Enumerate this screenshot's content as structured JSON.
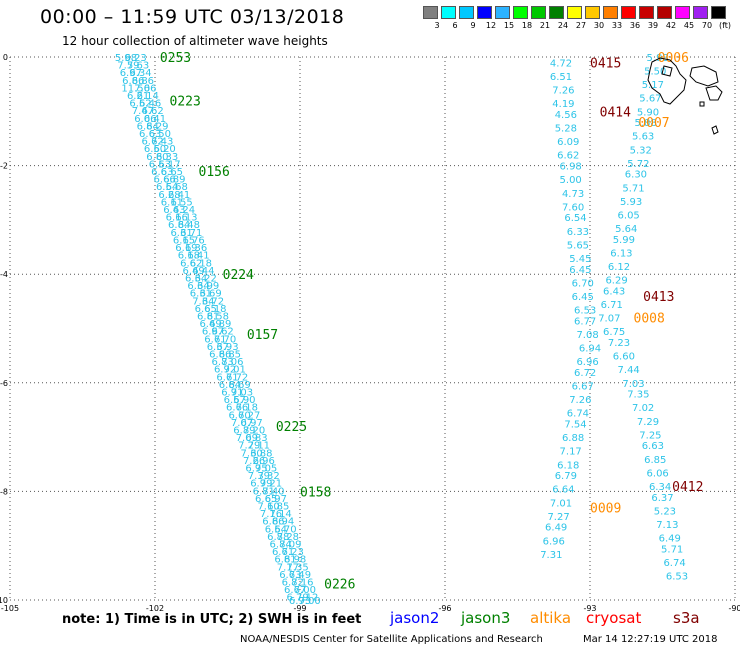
{
  "header": {
    "title": "00:00 – 11:59 UTC 03/13/2018",
    "subtitle": "12 hour collection of altimeter wave heights"
  },
  "color_scale": {
    "colors": [
      "#808080",
      "#00ffff",
      "#00c8ff",
      "#0000ff",
      "#2cb3ff",
      "#00ff00",
      "#00c800",
      "#008000",
      "#ffff00",
      "#ffc800",
      "#ff7f00",
      "#ff0000",
      "#c80000",
      "#b40000",
      "#ff00ff",
      "#a020f0",
      "#000000"
    ],
    "labels": [
      "3",
      "6",
      "9",
      "12",
      "15",
      "18",
      "21",
      "24",
      "27",
      "30",
      "33",
      "36",
      "39",
      "42",
      "45",
      "70",
      "(ft)"
    ]
  },
  "footer": {
    "note": "note: 1) Time is in UTC; 2) SWH is in feet",
    "satellites": [
      {
        "name": "jason2",
        "color": "#0000ff"
      },
      {
        "name": "jason3",
        "color": "#008000"
      },
      {
        "name": "altika",
        "color": "#ff8c00"
      },
      {
        "name": "cryosat",
        "color": "#ff0000"
      },
      {
        "name": "s3a",
        "color": "#800000"
      }
    ],
    "credit": "NOAA/NESDIS Center for Satellite Applications and Research",
    "timestamp": "Mar 14 12:27:19 UTC 2018"
  },
  "chart_data": {
    "type": "scatter",
    "xlim": [
      -105,
      -90
    ],
    "ylim": [
      -10,
      0
    ],
    "xticks": [
      -105,
      -102,
      -99,
      -96,
      -93,
      -90
    ],
    "yticks": [
      0,
      -2,
      -4,
      -6,
      -8,
      -10
    ],
    "grid": true,
    "data_color": "#2ec4e8",
    "track_labels": [
      {
        "label": "0253",
        "x": -101.9,
        "y": 0.0,
        "color": "#008000"
      },
      {
        "label": "0223",
        "x": -101.7,
        "y": -0.8,
        "color": "#008000"
      },
      {
        "label": "0156",
        "x": -101.1,
        "y": -2.1,
        "color": "#008000"
      },
      {
        "label": "0224",
        "x": -100.6,
        "y": -4.0,
        "color": "#008000"
      },
      {
        "label": "0157",
        "x": -100.1,
        "y": -5.1,
        "color": "#008000"
      },
      {
        "label": "0225",
        "x": -99.5,
        "y": -6.8,
        "color": "#008000"
      },
      {
        "label": "0158",
        "x": -99.0,
        "y": -8.0,
        "color": "#008000"
      },
      {
        "label": "0226",
        "x": -98.5,
        "y": -9.7,
        "color": "#008000"
      },
      {
        "label": "0415",
        "x": -93.0,
        "y": -0.1,
        "color": "#800000"
      },
      {
        "label": "0414",
        "x": -92.8,
        "y": -1.0,
        "color": "#800000"
      },
      {
        "label": "0413",
        "x": -91.9,
        "y": -4.4,
        "color": "#800000"
      },
      {
        "label": "0412",
        "x": -91.3,
        "y": -7.9,
        "color": "#800000"
      },
      {
        "label": "0006",
        "x": -91.6,
        "y": 0.0,
        "color": "#ff8c00"
      },
      {
        "label": "0007",
        "x": -92.0,
        "y": -1.2,
        "color": "#ff8c00"
      },
      {
        "label": "0008",
        "x": -92.1,
        "y": -4.8,
        "color": "#ff8c00"
      },
      {
        "label": "0009",
        "x": -93.0,
        "y": -8.3,
        "color": "#ff8c00"
      }
    ],
    "series": [
      {
        "x": [
          -102.6,
          -102.55,
          -102.5,
          -102.45,
          -102.4,
          -102.35,
          -102.3,
          -102.25,
          -102.2,
          -102.15,
          -102.1,
          -102.05,
          -102.0,
          -101.95,
          -101.9,
          -101.85,
          -101.8,
          -101.75,
          -101.7,
          -101.65,
          -101.6,
          -101.55,
          -101.5,
          -101.45,
          -101.4,
          -101.35,
          -101.3,
          -101.25,
          -101.2,
          -101.15,
          -101.1,
          -101.05,
          -101.0,
          -100.95,
          -100.9,
          -100.85,
          -100.8,
          -100.75,
          -100.7,
          -100.65,
          -100.6,
          -100.55,
          -100.5,
          -100.45,
          -100.4,
          -100.35,
          -100.3,
          -100.25,
          -100.2,
          -100.15,
          -100.1,
          -100.05,
          -100.0,
          -99.95,
          -99.9,
          -99.85,
          -99.8,
          -99.75,
          -99.7,
          -99.65,
          -99.6,
          -99.55,
          -99.5,
          -99.45,
          -99.4,
          -99.35,
          -99.3,
          -99.25,
          -99.2,
          -99.15,
          -99.1,
          -99.05,
          -99.0
        ],
        "y": [
          0.0,
          -0.14,
          -0.28,
          -0.42,
          -0.56,
          -0.7,
          -0.84,
          -0.98,
          -1.12,
          -1.26,
          -1.4,
          -1.54,
          -1.68,
          -1.82,
          -1.96,
          -2.1,
          -2.24,
          -2.38,
          -2.52,
          -2.66,
          -2.8,
          -2.94,
          -3.08,
          -3.22,
          -3.36,
          -3.5,
          -3.64,
          -3.78,
          -3.92,
          -4.06,
          -4.2,
          -4.34,
          -4.48,
          -4.62,
          -4.76,
          -4.9,
          -5.04,
          -5.18,
          -5.32,
          -5.46,
          -5.6,
          -5.74,
          -5.88,
          -6.02,
          -6.16,
          -6.3,
          -6.44,
          -6.58,
          -6.72,
          -6.86,
          -7.0,
          -7.14,
          -7.28,
          -7.42,
          -7.56,
          -7.7,
          -7.84,
          -7.98,
          -8.12,
          -8.26,
          -8.4,
          -8.54,
          -8.68,
          -8.82,
          -8.96,
          -9.1,
          -9.24,
          -9.38,
          -9.52,
          -9.66,
          -9.8,
          -9.94,
          -10.0
        ],
        "values": [
          5.98,
          7.59,
          6.97,
          6.86,
          11.56,
          6.21,
          6.52,
          7.47,
          6.06,
          6.84,
          6.63,
          6.72,
          6.5,
          6.8,
          6.53,
          6.63,
          6.66,
          6.54,
          6.28,
          6.11,
          6.43,
          6.16,
          6.84,
          6.31,
          6.15,
          6.19,
          6.18,
          6.62,
          6.49,
          6.34,
          6.34,
          6.31,
          7.34,
          6.65,
          6.81,
          6.49,
          6.97,
          6.71,
          6.37,
          6.86,
          6.83,
          6.92,
          6.71,
          6.84,
          6.91,
          6.57,
          6.66,
          6.6,
          7.07,
          6.89,
          7.09,
          7.29,
          7.3,
          7.26,
          6.95,
          7.39,
          6.99,
          6.81,
          6.65,
          7.1,
          7.16,
          6.86,
          6.54,
          6.88,
          6.84,
          6.61,
          6.81,
          7.17,
          6.63,
          6.82,
          6.67,
          6.79,
          6.93
        ]
      },
      {
        "x": [
          -102.4,
          -102.35,
          -102.3,
          -102.25,
          -102.2,
          -102.15,
          -102.1,
          -102.05,
          -102.0,
          -101.95,
          -101.9,
          -101.85,
          -101.8,
          -101.75,
          -101.7,
          -101.65,
          -101.6,
          -101.55,
          -101.5,
          -101.45,
          -101.4,
          -101.35,
          -101.3,
          -101.25,
          -101.2,
          -101.15,
          -101.1,
          -101.05,
          -101.0,
          -100.95,
          -100.9,
          -100.85,
          -100.8,
          -100.75,
          -100.7,
          -100.65,
          -100.6,
          -100.55,
          -100.5,
          -100.45,
          -100.4,
          -100.35,
          -100.3,
          -100.25,
          -100.2,
          -100.15,
          -100.1,
          -100.05,
          -100.0,
          -99.95,
          -99.9,
          -99.85,
          -99.8,
          -99.75,
          -99.7,
          -99.65,
          -99.6,
          -99.55,
          -99.5,
          -99.45,
          -99.4,
          -99.35,
          -99.3,
          -99.25,
          -99.2,
          -99.15,
          -99.1,
          -99.05,
          -99.0,
          -98.95,
          -98.9,
          -98.85,
          -98.8
        ],
        "y": [
          0.0,
          -0.14,
          -0.28,
          -0.42,
          -0.56,
          -0.7,
          -0.84,
          -0.98,
          -1.12,
          -1.26,
          -1.4,
          -1.54,
          -1.68,
          -1.82,
          -1.96,
          -2.1,
          -2.24,
          -2.38,
          -2.52,
          -2.66,
          -2.8,
          -2.94,
          -3.08,
          -3.22,
          -3.36,
          -3.5,
          -3.64,
          -3.78,
          -3.92,
          -4.06,
          -4.2,
          -4.34,
          -4.48,
          -4.62,
          -4.76,
          -4.9,
          -5.04,
          -5.18,
          -5.32,
          -5.46,
          -5.6,
          -5.74,
          -5.88,
          -6.02,
          -6.16,
          -6.3,
          -6.44,
          -6.58,
          -6.72,
          -6.86,
          -7.0,
          -7.14,
          -7.28,
          -7.42,
          -7.56,
          -7.7,
          -7.84,
          -7.98,
          -8.12,
          -8.26,
          -8.4,
          -8.54,
          -8.68,
          -8.82,
          -8.96,
          -9.1,
          -9.24,
          -9.38,
          -9.52,
          -9.66,
          -9.8,
          -9.94,
          -10.0
        ],
        "values": [
          6.23,
          7.63,
          6.34,
          6.86,
          7.06,
          6.14,
          6.46,
          6.62,
          6.41,
          6.29,
          6.5,
          6.43,
          6.2,
          6.33,
          6.17,
          6.65,
          6.89,
          6.68,
          6.41,
          6.55,
          6.24,
          6.13,
          6.48,
          6.71,
          6.76,
          6.36,
          6.41,
          6.18,
          6.44,
          6.22,
          6.99,
          6.69,
          6.72,
          6.18,
          6.58,
          6.89,
          6.62,
          6.7,
          6.93,
          6.85,
          7.06,
          7.01,
          6.72,
          6.69,
          7.03,
          6.9,
          7.18,
          7.27,
          6.97,
          7.2,
          6.83,
          7.11,
          6.88,
          6.96,
          7.05,
          7.32,
          7.21,
          7.4,
          6.97,
          6.85,
          7.14,
          6.94,
          6.7,
          7.28,
          7.09,
          7.23,
          6.98,
          7.35,
          7.49,
          7.16,
          7.0,
          7.12,
          7.0
        ]
      },
      {
        "x": [
          -93.6,
          -93.6,
          -93.55,
          -93.55,
          -93.5,
          -93.5,
          -93.45,
          -93.45,
          -93.4,
          -93.4,
          -93.35,
          -93.35,
          -93.3,
          -93.25,
          -93.25,
          -93.2,
          -93.2,
          -93.15,
          -93.15,
          -93.1,
          -93.1,
          -93.05,
          -93.0,
          -93.05,
          -93.1,
          -93.15,
          -93.2,
          -93.25,
          -93.3,
          -93.35,
          -93.4,
          -93.45,
          -93.5,
          -93.55,
          -93.6,
          -93.65,
          -93.7,
          -93.75,
          -93.8
        ],
        "y": [
          -0.1,
          -0.35,
          -0.6,
          -0.85,
          -1.05,
          -1.3,
          -1.55,
          -1.8,
          -2.0,
          -2.25,
          -2.5,
          -2.75,
          -2.95,
          -3.2,
          -3.45,
          -3.7,
          -3.9,
          -4.15,
          -4.4,
          -4.65,
          -4.85,
          -5.1,
          -5.35,
          -5.6,
          -5.8,
          -6.05,
          -6.3,
          -6.55,
          -6.75,
          -7.0,
          -7.25,
          -7.5,
          -7.7,
          -7.95,
          -8.2,
          -8.45,
          -8.65,
          -8.9,
          -9.15
        ],
        "values": [
          4.72,
          6.51,
          7.26,
          4.19,
          4.56,
          5.28,
          6.09,
          6.62,
          6.98,
          5.0,
          4.73,
          7.6,
          6.54,
          6.33,
          5.65,
          5.45,
          6.45,
          6.7,
          6.45,
          6.53,
          6.77,
          7.08,
          6.94,
          6.96,
          6.72,
          6.67,
          7.26,
          6.74,
          7.54,
          6.88,
          7.17,
          6.18,
          6.79,
          6.64,
          7.01,
          7.27,
          6.49,
          6.96,
          7.31
        ]
      },
      {
        "x": [
          -91.6,
          -91.65,
          -91.7,
          -91.75,
          -91.8,
          -91.85,
          -91.9,
          -91.95,
          -92.0,
          -92.05,
          -92.1,
          -92.15,
          -92.2,
          -92.25,
          -92.3,
          -92.35,
          -92.4,
          -92.45,
          -92.5,
          -92.55,
          -92.6,
          -92.5,
          -92.4,
          -92.3,
          -92.2,
          -92.1,
          -92.0,
          -91.9,
          -91.8,
          -91.75,
          -91.7,
          -91.65,
          -91.6,
          -91.55,
          -91.5,
          -91.45,
          -91.4,
          -91.35,
          -91.3,
          -91.25,
          -91.2
        ],
        "y": [
          0.0,
          -0.25,
          -0.5,
          -0.75,
          -1.0,
          -1.2,
          -1.45,
          -1.7,
          -1.95,
          -2.15,
          -2.4,
          -2.65,
          -2.9,
          -3.15,
          -3.35,
          -3.6,
          -3.85,
          -4.1,
          -4.3,
          -4.55,
          -4.8,
          -5.05,
          -5.25,
          -5.5,
          -5.75,
          -6.0,
          -6.2,
          -6.45,
          -6.7,
          -6.95,
          -7.15,
          -7.4,
          -7.65,
          -7.9,
          -8.1,
          -8.35,
          -8.6,
          -8.85,
          -9.05,
          -9.3,
          -9.55
        ],
        "values": [
          5.98,
          5.5,
          5.17,
          5.67,
          5.9,
          5.88,
          5.63,
          5.32,
          5.72,
          6.3,
          5.71,
          5.93,
          6.05,
          5.64,
          5.99,
          6.13,
          6.12,
          6.29,
          6.43,
          6.71,
          7.07,
          6.75,
          7.23,
          6.6,
          7.44,
          7.03,
          7.35,
          7.02,
          7.29,
          7.25,
          6.63,
          6.85,
          6.06,
          6.34,
          6.37,
          5.23,
          7.13,
          6.49,
          5.71,
          6.74,
          6.53
        ]
      }
    ]
  }
}
